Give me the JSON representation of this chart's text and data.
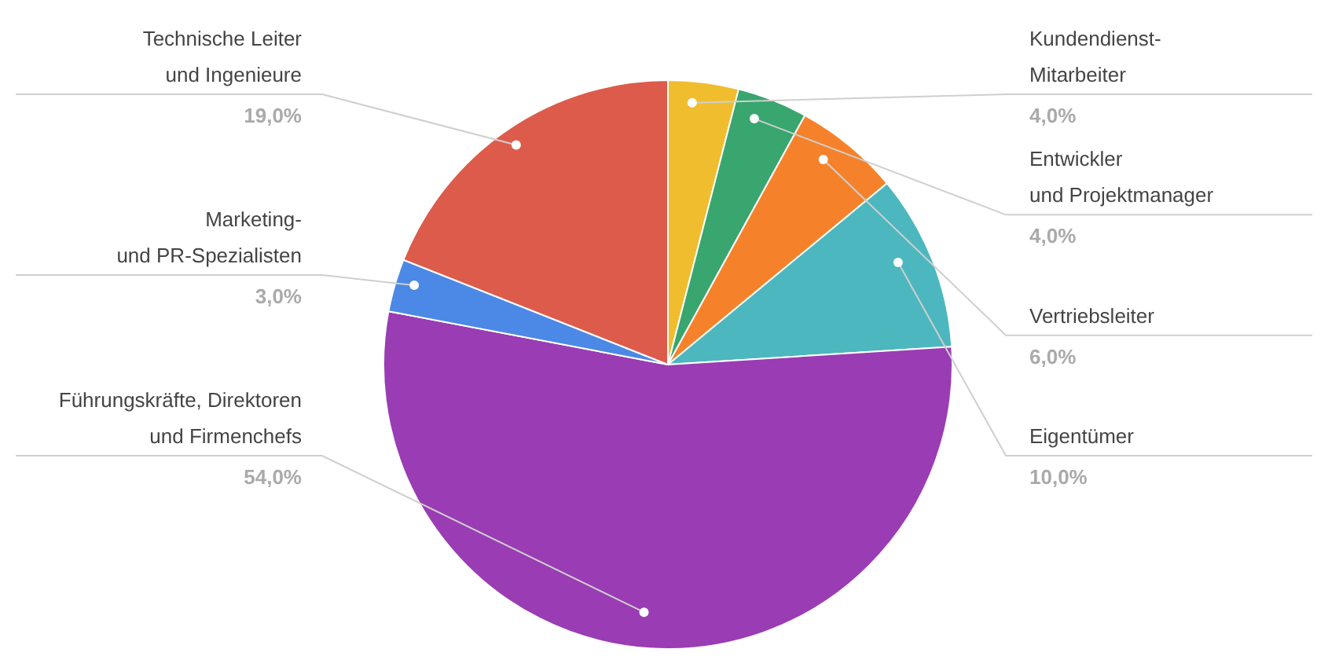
{
  "chart_data": {
    "type": "pie",
    "categories": [
      "Kundendienst-\nMitarbeiter",
      "Entwickler\nund Projektmanager",
      "Vertriebsleiter",
      "Eigentümer",
      "Führungskräfte, Direktoren\nund Firmenchefs",
      "Marketing-\nund PR-Spezialisten",
      "Technische Leiter\nund Ingenieure"
    ],
    "values": [
      4,
      4,
      6,
      10,
      54,
      3,
      19
    ],
    "colors": [
      "#f0bd2f",
      "#38a66e",
      "#f5822a",
      "#4cb7bf",
      "#9a3cb3",
      "#4c89e6",
      "#dc5b4b"
    ],
    "value_labels": [
      "4,0%",
      "4,0%",
      "6,0%",
      "10,0%",
      "54,0%",
      "3,0%",
      "19,0%"
    ]
  }
}
